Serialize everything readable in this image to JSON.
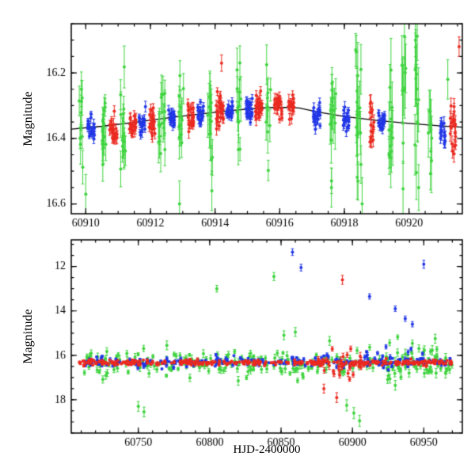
{
  "labels": {
    "y_top": "Magnitude",
    "y_bottom": "Magnitude",
    "x_bottom": "HJD-2400000"
  },
  "colors": {
    "blue": "#2136e6",
    "green": "#3fd33f",
    "red": "#ea2a20",
    "curve": "#000000",
    "frame": "#000000",
    "background": "#ffffff"
  },
  "chart_data": [
    {
      "type": "scatter",
      "panel": "top",
      "ylabel": "Magnitude",
      "xlim": [
        60909.55,
        60921.65
      ],
      "ylim_mag": [
        16.05,
        16.63
      ],
      "y_inverted": true,
      "xticks": [
        60910,
        60912,
        60914,
        60916,
        60918,
        60920
      ],
      "xtick_minor_step": 0.5,
      "yticks": [
        16.2,
        16.4,
        16.6
      ],
      "ytick_labels": [
        "16.2",
        "16.4",
        "16.6"
      ],
      "ytick_minor_step": 0.05,
      "seed": 11,
      "model_curve": [
        [
          60909.5,
          16.372
        ],
        [
          60910.5,
          16.363
        ],
        [
          60911.5,
          16.351
        ],
        [
          60912.5,
          16.338
        ],
        [
          60913.5,
          16.326
        ],
        [
          60914.5,
          16.315
        ],
        [
          60915.3,
          16.308
        ],
        [
          60916.0,
          16.305
        ],
        [
          60916.6,
          16.307
        ],
        [
          60917.2,
          16.32
        ],
        [
          60918.0,
          16.333
        ],
        [
          60919.0,
          16.345
        ],
        [
          60920.0,
          16.354
        ],
        [
          60921.0,
          16.362
        ],
        [
          60921.7,
          16.366
        ]
      ],
      "clusters_format": [
        "color",
        "x_center",
        "x_halfwidth",
        "n_points",
        "mag_mean",
        "mag_sigma",
        "errbar_mag"
      ],
      "clusters": [
        [
          "green",
          60909.85,
          0.08,
          10,
          16.4,
          0.09,
          0.05
        ],
        [
          "blue",
          60910.15,
          0.12,
          22,
          16.37,
          0.018,
          0.012
        ],
        [
          "green",
          60910.55,
          0.1,
          16,
          16.36,
          0.05,
          0.04
        ],
        [
          "red",
          60910.85,
          0.12,
          22,
          16.375,
          0.022,
          0.015
        ],
        [
          "green",
          60911.15,
          0.08,
          14,
          16.36,
          0.06,
          0.05
        ],
        [
          "red",
          60911.45,
          0.1,
          20,
          16.355,
          0.022,
          0.015
        ],
        [
          "blue",
          60911.75,
          0.1,
          18,
          16.35,
          0.018,
          0.012
        ],
        [
          "red",
          60912.05,
          0.1,
          18,
          16.345,
          0.022,
          0.015
        ],
        [
          "green",
          60912.35,
          0.1,
          16,
          16.35,
          0.06,
          0.05
        ],
        [
          "blue",
          60912.65,
          0.1,
          20,
          16.34,
          0.018,
          0.012
        ],
        [
          "green",
          60912.95,
          0.08,
          12,
          16.34,
          0.06,
          0.05
        ],
        [
          "red",
          60913.25,
          0.1,
          22,
          16.33,
          0.022,
          0.015
        ],
        [
          "blue",
          60913.55,
          0.1,
          20,
          16.325,
          0.018,
          0.012
        ],
        [
          "green",
          60913.85,
          0.08,
          12,
          16.33,
          0.08,
          0.06
        ],
        [
          "red",
          60914.15,
          0.12,
          26,
          16.315,
          0.03,
          0.015
        ],
        [
          "blue",
          60914.45,
          0.1,
          22,
          16.315,
          0.018,
          0.012
        ],
        [
          "green",
          60914.75,
          0.08,
          12,
          16.32,
          0.07,
          0.05
        ],
        [
          "blue",
          60915.05,
          0.1,
          24,
          16.31,
          0.018,
          0.012
        ],
        [
          "red",
          60915.35,
          0.1,
          26,
          16.307,
          0.022,
          0.015
        ],
        [
          "green",
          60915.65,
          0.08,
          10,
          16.31,
          0.06,
          0.05
        ],
        [
          "red",
          60915.95,
          0.12,
          26,
          16.305,
          0.022,
          0.015
        ],
        [
          "red",
          60916.35,
          0.1,
          18,
          16.31,
          0.025,
          0.015
        ],
        [
          "blue",
          60917.15,
          0.12,
          22,
          16.325,
          0.018,
          0.012
        ],
        [
          "green",
          60917.65,
          0.09,
          14,
          16.33,
          0.08,
          0.06
        ],
        [
          "blue",
          60918.05,
          0.1,
          20,
          16.34,
          0.018,
          0.012
        ],
        [
          "green",
          60918.45,
          0.08,
          16,
          16.35,
          0.11,
          0.08
        ],
        [
          "red",
          60918.85,
          0.08,
          16,
          16.36,
          0.035,
          0.02
        ],
        [
          "blue",
          60919.15,
          0.1,
          20,
          16.35,
          0.02,
          0.012
        ],
        [
          "green",
          60919.45,
          0.07,
          12,
          16.35,
          0.1,
          0.07
        ],
        [
          "green",
          60919.85,
          0.07,
          10,
          16.33,
          0.11,
          0.08
        ],
        [
          "green",
          60920.25,
          0.07,
          12,
          16.3,
          0.12,
          0.08
        ],
        [
          "green",
          60920.65,
          0.06,
          8,
          16.35,
          0.09,
          0.07
        ],
        [
          "blue",
          60921.05,
          0.08,
          16,
          16.38,
          0.025,
          0.015
        ],
        [
          "red",
          60921.35,
          0.1,
          20,
          16.37,
          0.045,
          0.02
        ]
      ],
      "outliers_format": [
        "color",
        "x",
        "mag",
        "errbar_mag"
      ],
      "outliers": [
        [
          "red",
          60914.2,
          16.17,
          0.025
        ],
        [
          "green",
          60918.35,
          16.13,
          0.05
        ],
        [
          "green",
          60920.2,
          16.1,
          0.05
        ],
        [
          "green",
          60921.2,
          16.22,
          0.06
        ],
        [
          "red",
          60921.55,
          16.12,
          0.03
        ],
        [
          "green",
          60917.6,
          16.55,
          0.06
        ],
        [
          "green",
          60913.9,
          16.56,
          0.06
        ],
        [
          "green",
          60912.9,
          16.6,
          0.07
        ],
        [
          "green",
          60910.0,
          16.57,
          0.06
        ],
        [
          "green",
          60918.55,
          16.6,
          0.08
        ],
        [
          "green",
          60920.3,
          16.55,
          0.07
        ]
      ]
    },
    {
      "type": "scatter",
      "panel": "bottom",
      "xlabel": "HJD-2400000",
      "ylabel": "Magnitude",
      "xlim": [
        60703,
        60977
      ],
      "ylim_mag": [
        10.8,
        19.5
      ],
      "y_inverted": true,
      "xticks": [
        60750,
        60800,
        60850,
        60900,
        60950
      ],
      "xtick_minor_step": 10,
      "yticks": [
        12,
        14,
        16,
        18
      ],
      "ytick_labels": [
        "12",
        "14",
        "16",
        "18"
      ],
      "ytick_minor_step": 0.5,
      "seed": 23,
      "bands_format": [
        "color",
        "x_start",
        "x_end",
        "n_points",
        "mag_mean",
        "mag_sigma",
        "errbar_mag"
      ],
      "bands": [
        [
          "green",
          60712,
          60970,
          240,
          16.38,
          0.26,
          0.12
        ],
        [
          "green",
          60920,
          60968,
          25,
          16.0,
          0.45,
          0.15
        ],
        [
          "blue",
          60712,
          60970,
          240,
          16.3,
          0.1,
          0.06
        ],
        [
          "blue",
          60898,
          60950,
          20,
          16.05,
          0.28,
          0.08
        ],
        [
          "red",
          60708,
          60970,
          320,
          16.33,
          0.055,
          0.05
        ],
        [
          "red",
          60876,
          60908,
          30,
          16.4,
          0.3,
          0.12
        ]
      ],
      "outliers_format": [
        "color",
        "x",
        "mag",
        "errbar_mag"
      ],
      "outliers": [
        [
          "blue",
          60858,
          11.35,
          0.15
        ],
        [
          "blue",
          60864,
          12.05,
          0.15
        ],
        [
          "blue",
          60950,
          11.9,
          0.18
        ],
        [
          "blue",
          60912,
          13.35,
          0.12
        ],
        [
          "blue",
          60930,
          13.9,
          0.12
        ],
        [
          "blue",
          60937,
          14.35,
          0.12
        ],
        [
          "blue",
          60942,
          14.6,
          0.12
        ],
        [
          "green",
          60805,
          13.0,
          0.15
        ],
        [
          "green",
          60845,
          12.45,
          0.18
        ],
        [
          "green",
          60852,
          15.1,
          0.2
        ],
        [
          "green",
          60860,
          14.95,
          0.2
        ],
        [
          "green",
          60884,
          15.35,
          0.2
        ],
        [
          "green",
          60770,
          15.55,
          0.2
        ],
        [
          "green",
          60750,
          18.3,
          0.22
        ],
        [
          "green",
          60754,
          18.55,
          0.22
        ],
        [
          "green",
          60820,
          17.15,
          0.2
        ],
        [
          "green",
          60896,
          18.25,
          0.25
        ],
        [
          "green",
          60901,
          18.6,
          0.25
        ],
        [
          "green",
          60905,
          18.95,
          0.25
        ],
        [
          "green",
          60930,
          17.35,
          0.22
        ],
        [
          "green",
          60958,
          15.25,
          0.2
        ],
        [
          "red",
          60893,
          12.6,
          0.2
        ],
        [
          "red",
          60880,
          17.5,
          0.2
        ],
        [
          "red",
          60889,
          17.9,
          0.22
        ]
      ]
    }
  ]
}
